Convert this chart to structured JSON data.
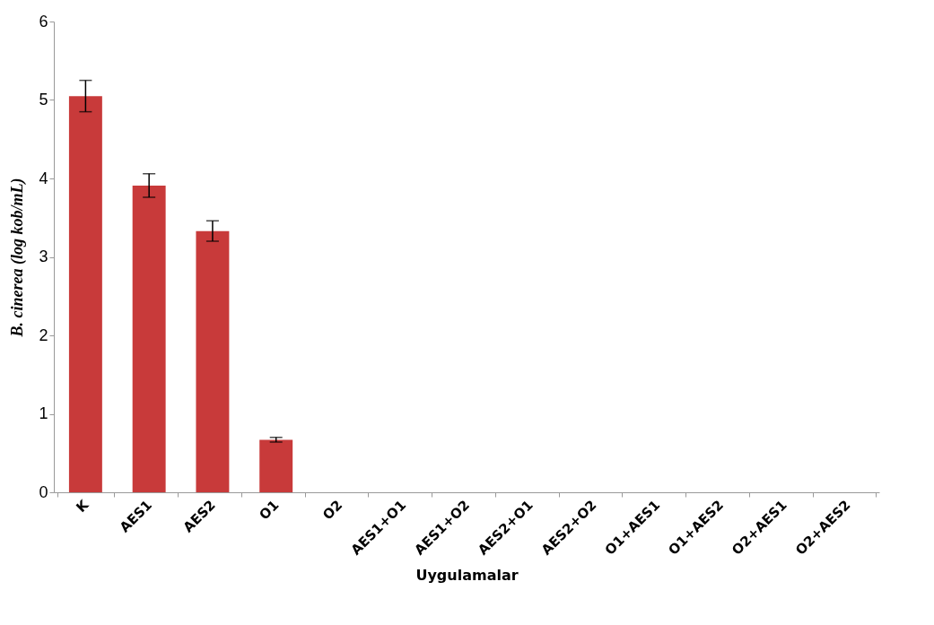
{
  "chart_data": {
    "type": "bar",
    "xlabel": "Uygulamalar",
    "ylabel": "B. cinerea  (log kob/mL)",
    "categories": [
      "K",
      "AES1",
      "AES2",
      "O1",
      "O2",
      "AES1+O1",
      "AES1+O2",
      "AES2+O1",
      "AES2+O2",
      "O1+AES1",
      "O1+AES2",
      "O2+AES1",
      "O2+AES2"
    ],
    "values": [
      5.05,
      3.91,
      3.33,
      0.67,
      0,
      0,
      0,
      0,
      0,
      0,
      0,
      0,
      0
    ],
    "errors": [
      0.2,
      0.15,
      0.13,
      0.03,
      null,
      null,
      null,
      null,
      null,
      null,
      null,
      null,
      null
    ],
    "color": "#c83a3a",
    "ylim": [
      0,
      6
    ],
    "yticks": [
      0,
      1,
      2,
      3,
      4,
      5,
      6
    ],
    "grid": false
  }
}
